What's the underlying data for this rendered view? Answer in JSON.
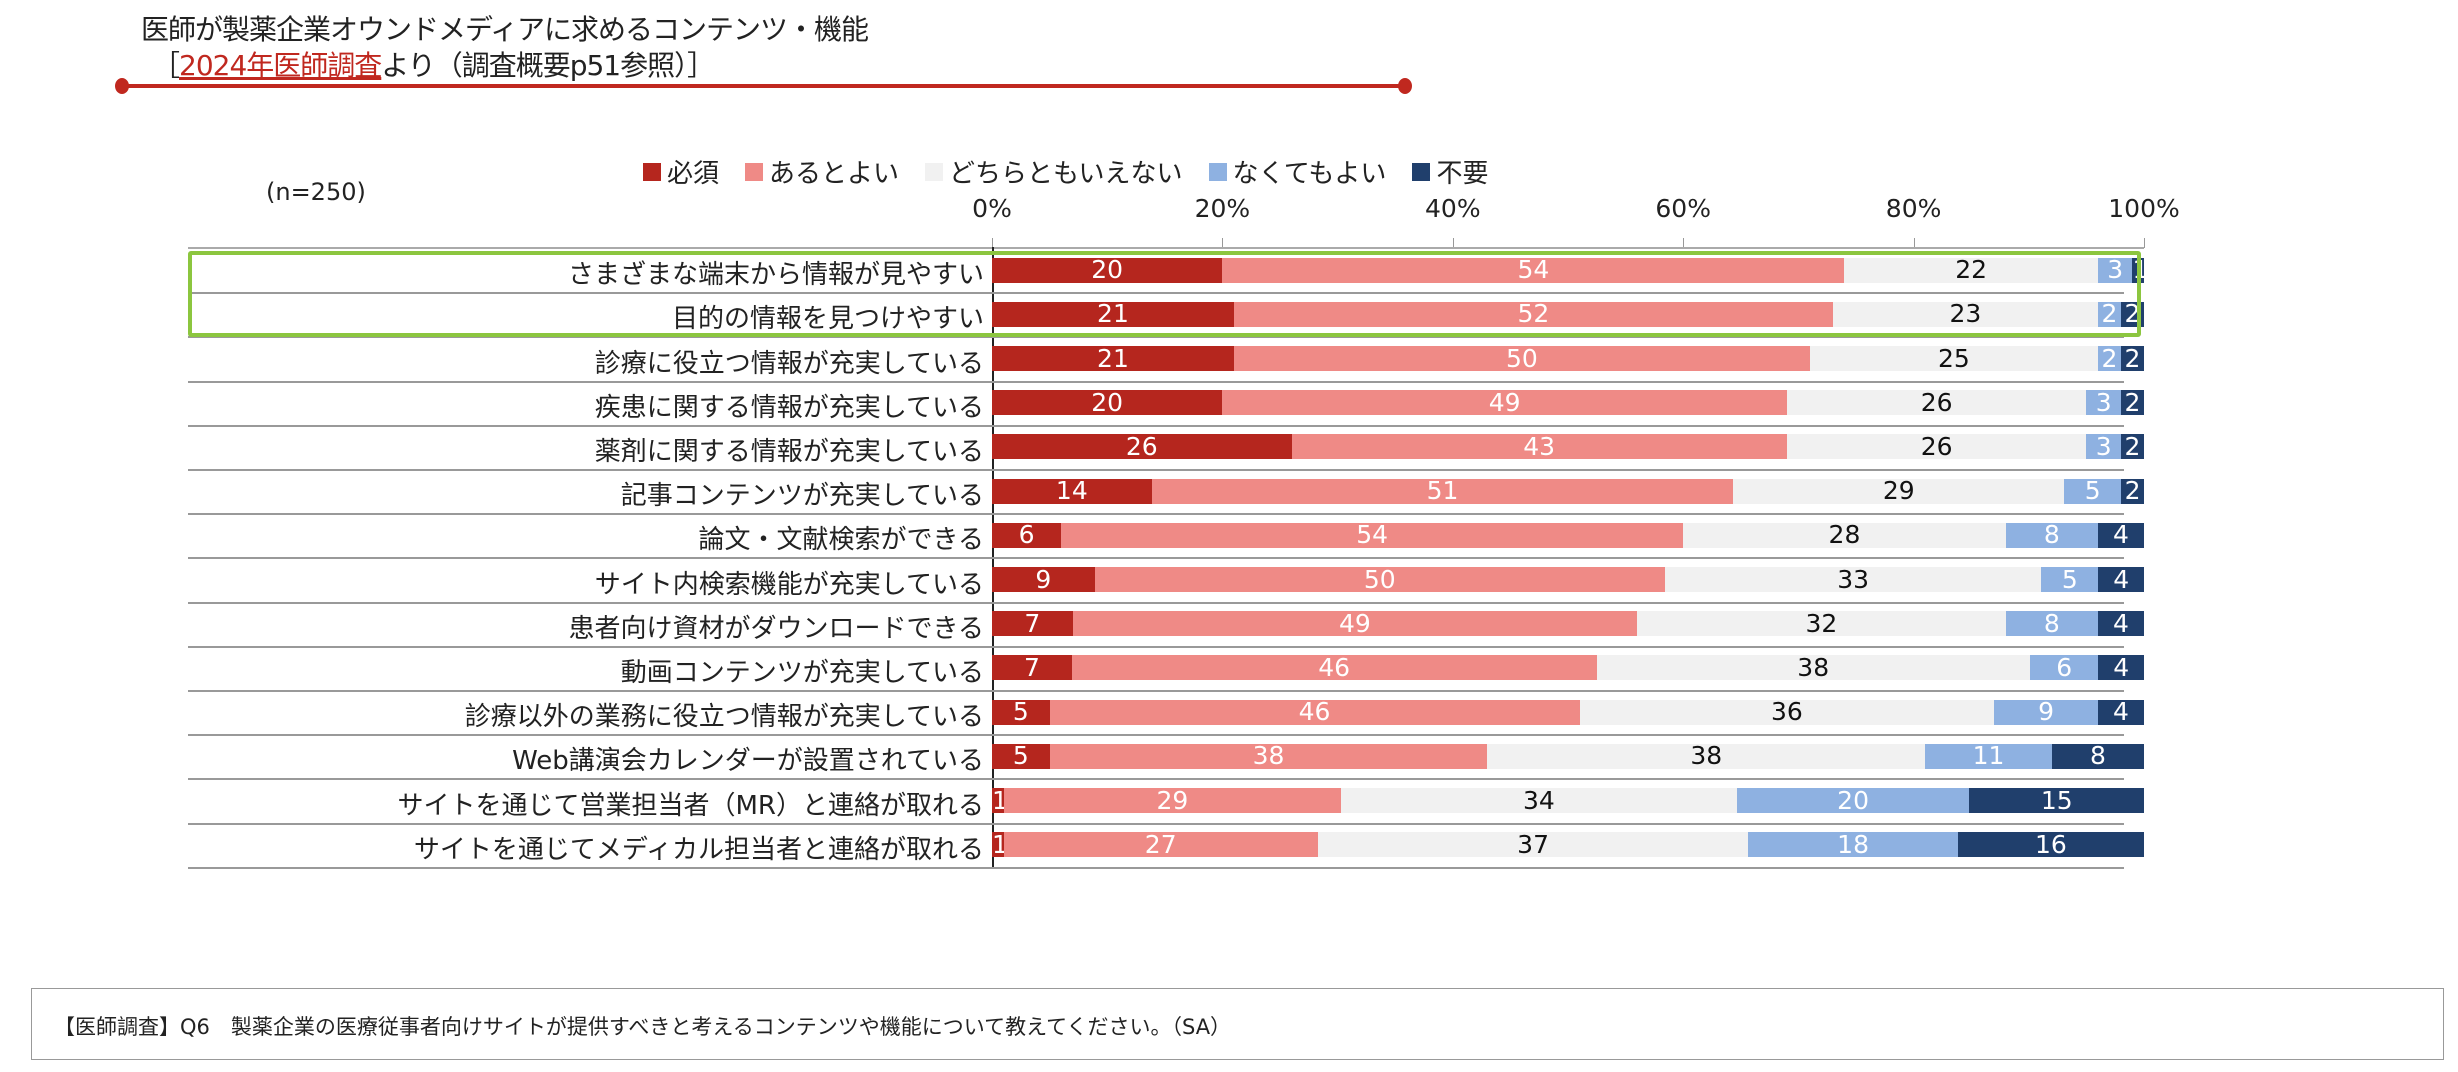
{
  "header": {
    "title": "医師が製薬企業オウンドメディアに求めるコンテンツ・機能",
    "subtitle_open": "［",
    "subtitle_link": "2024年医師調査",
    "subtitle_rest": "より（調査概要p51参照）］"
  },
  "sample_note": "(n=250)",
  "footer": {
    "question": "【医師調査】Q6　製薬企業の医療従事者向けサイトが提供すべきと考えるコンテンツや機能について教えてください。（SA）"
  },
  "chart_data": {
    "type": "bar",
    "orientation": "horizontal",
    "stacked": "100%",
    "xlim": [
      0,
      100
    ],
    "x_ticks": [
      "0%",
      "20%",
      "40%",
      "60%",
      "80%",
      "100%"
    ],
    "legend_position": "top",
    "highlighted_categories": [
      "さまざまな端末から情報が見やすい",
      "目的の情報を見つけやすい"
    ],
    "highlight_color": "#8cc63f",
    "categories": [
      "さまざまな端末から情報が見やすい",
      "目的の情報を見つけやすい",
      "診療に役立つ情報が充実している",
      "疾患に関する情報が充実している",
      "薬剤に関する情報が充実している",
      "記事コンテンツが充実している",
      "論文・文献検索ができる",
      "サイト内検索機能が充実している",
      "患者向け資材がダウンロードできる",
      "動画コンテンツが充実している",
      "診療以外の業務に役立つ情報が充実している",
      "Web講演会カレンダーが設置されている",
      "サイトを通じて営業担当者（MR）と連絡が取れる",
      "サイトを通じてメディカル担当者と連絡が取れる"
    ],
    "series": [
      {
        "name": "必須",
        "color": "#b5261e",
        "label_color": "#ffffff",
        "values": [
          20,
          21,
          21,
          20,
          26,
          14,
          6,
          9,
          7,
          7,
          5,
          5,
          1,
          1
        ]
      },
      {
        "name": "あるとよい",
        "color": "#ef8a86",
        "label_color": "#ffffff",
        "values": [
          54,
          52,
          50,
          49,
          43,
          51,
          54,
          50,
          49,
          46,
          46,
          38,
          29,
          27
        ]
      },
      {
        "name": "どちらともいえない",
        "color": "#f1f1f1",
        "label_color": "#111111",
        "values": [
          22,
          23,
          25,
          26,
          26,
          29,
          28,
          33,
          32,
          38,
          36,
          38,
          34,
          37
        ]
      },
      {
        "name": "なくてもよい",
        "color": "#8eb1e1",
        "label_color": "#ffffff",
        "values": [
          3,
          2,
          2,
          3,
          3,
          5,
          8,
          5,
          8,
          6,
          9,
          11,
          20,
          18
        ]
      },
      {
        "name": "不要",
        "color": "#203f6c",
        "label_color": "#ffffff",
        "values": [
          1,
          2,
          2,
          2,
          2,
          2,
          4,
          4,
          4,
          4,
          4,
          8,
          15,
          16
        ]
      }
    ]
  }
}
